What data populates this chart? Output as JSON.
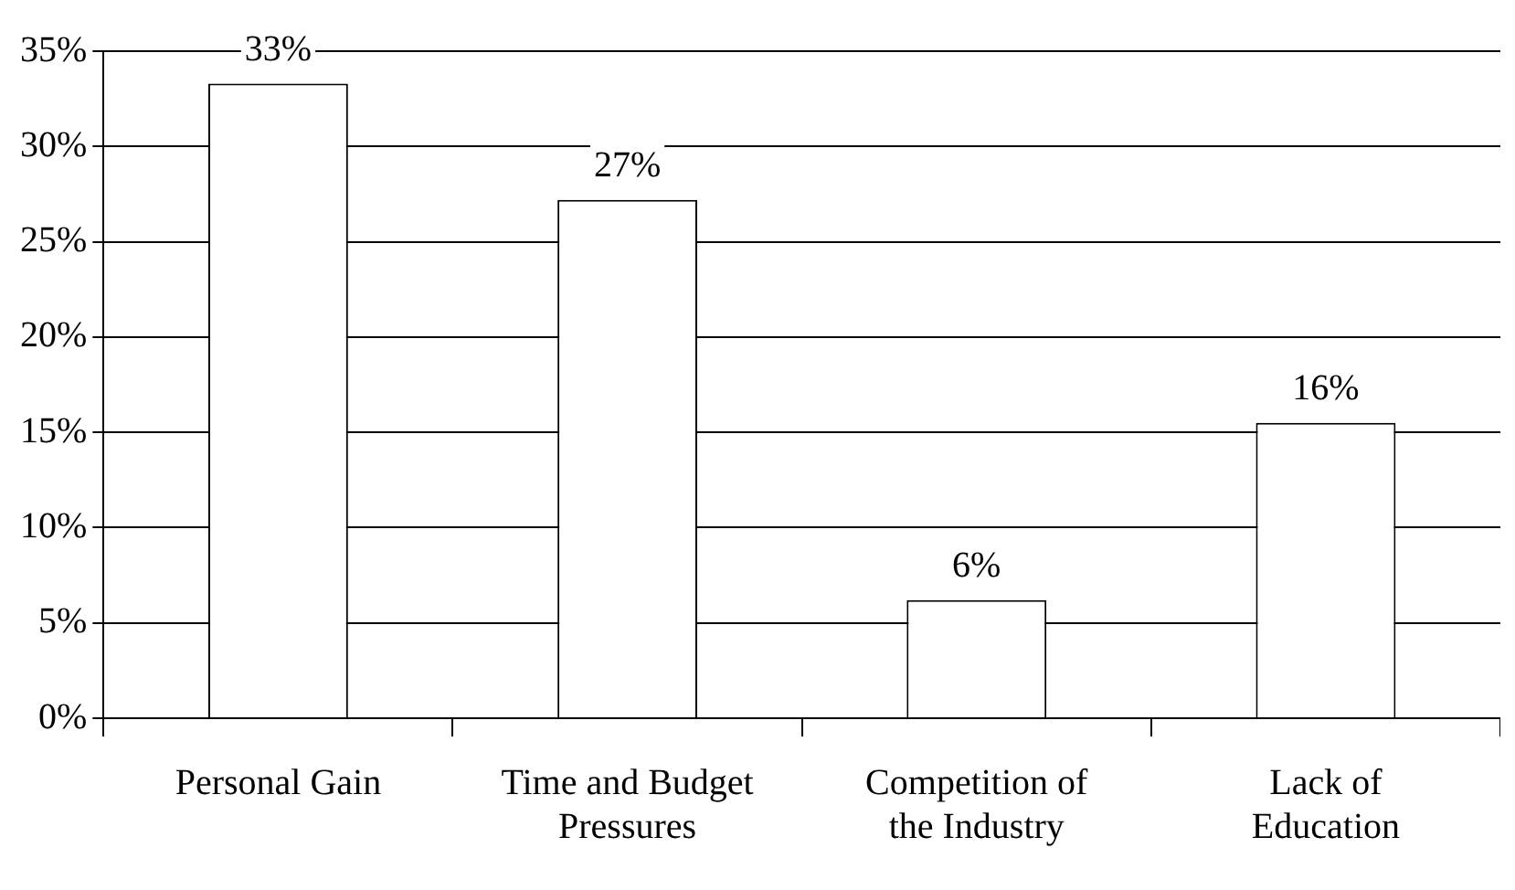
{
  "chart_data": {
    "type": "bar",
    "categories": [
      "Personal Gain",
      "Time and Budget Pressures",
      "Competition of the Industry",
      "Lack of Education"
    ],
    "values": [
      33.3,
      27.2,
      6.2,
      15.5
    ],
    "value_labels": [
      "33%",
      "27%",
      "6%",
      "16%"
    ],
    "color": "#ffffff",
    "ylim": [
      0,
      35
    ],
    "yticks": [
      {
        "value": 0,
        "label": "0%"
      },
      {
        "value": 5,
        "label": "5%"
      },
      {
        "value": 10,
        "label": "10%"
      },
      {
        "value": 15,
        "label": "15%"
      },
      {
        "value": 20,
        "label": "20%"
      },
      {
        "value": 25,
        "label": "25%"
      },
      {
        "value": 30,
        "label": "30%"
      },
      {
        "value": 35,
        "label": "35%"
      }
    ],
    "grid": "y",
    "legend": false
  }
}
